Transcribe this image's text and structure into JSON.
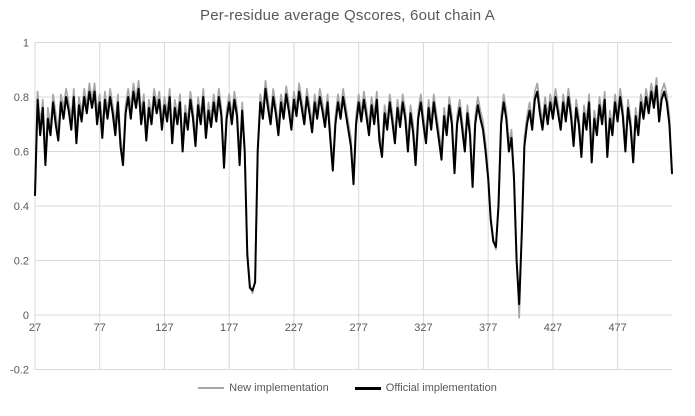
{
  "title": "Per-residue average Qscores, 6out chain A",
  "colors": {
    "title_text": "#595959",
    "axis_text": "#595959",
    "gridline": "#d9d9d9",
    "background": "#ffffff",
    "series_new": "#a6a6a6",
    "series_official": "#000000"
  },
  "legend": {
    "items": [
      {
        "label": "New implementation",
        "color": "#a6a6a6"
      },
      {
        "label": "Official implementation",
        "color": "#000000"
      }
    ]
  },
  "chart_data": {
    "type": "line",
    "title": "Per-residue average Qscores, 6out chain A",
    "xlabel": "",
    "ylabel": "",
    "xlim": [
      27,
      519
    ],
    "ylim": [
      -0.2,
      1
    ],
    "grid": true,
    "legend_position": "bottom",
    "x_ticks": [
      27,
      77,
      127,
      177,
      227,
      277,
      327,
      377,
      427,
      477
    ],
    "y_ticks": [
      "1",
      "0.8",
      "0.6",
      "0.4",
      "0.2",
      "0",
      "-0.2"
    ],
    "y_tick_values": [
      1,
      0.8,
      0.6,
      0.4,
      0.2,
      0,
      -0.2
    ],
    "x_start": 27,
    "x_step": 2,
    "series": [
      {
        "name": "New implementation",
        "color": "#a6a6a6",
        "width": 1.7,
        "values": [
          0.47,
          0.82,
          0.7,
          0.79,
          0.58,
          0.76,
          0.69,
          0.81,
          0.74,
          0.67,
          0.81,
          0.76,
          0.83,
          0.78,
          0.72,
          0.83,
          0.66,
          0.8,
          0.74,
          0.83,
          0.77,
          0.85,
          0.79,
          0.85,
          0.74,
          0.81,
          0.68,
          0.82,
          0.75,
          0.83,
          0.77,
          0.7,
          0.81,
          0.65,
          0.58,
          0.77,
          0.83,
          0.76,
          0.85,
          0.79,
          0.86,
          0.74,
          0.81,
          0.67,
          0.79,
          0.73,
          0.83,
          0.77,
          0.82,
          0.71,
          0.8,
          0.74,
          0.83,
          0.66,
          0.79,
          0.73,
          0.81,
          0.63,
          0.77,
          0.71,
          0.82,
          0.75,
          0.65,
          0.8,
          0.73,
          0.83,
          0.68,
          0.78,
          0.72,
          0.81,
          0.74,
          0.83,
          0.76,
          0.57,
          0.75,
          0.81,
          0.73,
          0.82,
          0.76,
          0.58,
          0.78,
          0.62,
          0.24,
          0.11,
          0.08,
          0.13,
          0.62,
          0.81,
          0.75,
          0.86,
          0.79,
          0.73,
          0.83,
          0.77,
          0.69,
          0.81,
          0.75,
          0.84,
          0.78,
          0.71,
          0.82,
          0.76,
          0.85,
          0.79,
          0.73,
          0.83,
          0.77,
          0.7,
          0.81,
          0.75,
          0.83,
          0.78,
          0.72,
          0.81,
          0.68,
          0.55,
          0.73,
          0.81,
          0.75,
          0.83,
          0.77,
          0.71,
          0.65,
          0.5,
          0.73,
          0.81,
          0.74,
          0.82,
          0.76,
          0.69,
          0.8,
          0.73,
          0.82,
          0.67,
          0.61,
          0.77,
          0.71,
          0.81,
          0.74,
          0.66,
          0.79,
          0.72,
          0.81,
          0.75,
          0.63,
          0.77,
          0.7,
          0.58,
          0.75,
          0.81,
          0.73,
          0.66,
          0.79,
          0.71,
          0.81,
          0.74,
          0.67,
          0.6,
          0.76,
          0.69,
          0.8,
          0.73,
          0.55,
          0.73,
          0.79,
          0.71,
          0.63,
          0.77,
          0.69,
          0.5,
          0.73,
          0.8,
          0.75,
          0.71,
          0.63,
          0.52,
          0.36,
          0.28,
          0.24,
          0.42,
          0.73,
          0.81,
          0.75,
          0.63,
          0.68,
          0.52,
          0.21,
          -0.01,
          0.32,
          0.65,
          0.73,
          0.78,
          0.71,
          0.82,
          0.85,
          0.77,
          0.71,
          0.8,
          0.73,
          0.81,
          0.75,
          0.83,
          0.77,
          0.71,
          0.81,
          0.74,
          0.83,
          0.76,
          0.65,
          0.79,
          0.73,
          0.61,
          0.77,
          0.71,
          0.81,
          0.59,
          0.75,
          0.69,
          0.8,
          0.73,
          0.82,
          0.61,
          0.75,
          0.69,
          0.81,
          0.74,
          0.83,
          0.76,
          0.63,
          0.79,
          0.72,
          0.59,
          0.76,
          0.69,
          0.81,
          0.75,
          0.83,
          0.77,
          0.85,
          0.79,
          0.87,
          0.74,
          0.82,
          0.85,
          0.81,
          0.73,
          0.53
        ]
      },
      {
        "name": "Official implementation",
        "color": "#000000",
        "width": 2,
        "values": [
          0.44,
          0.79,
          0.66,
          0.76,
          0.55,
          0.72,
          0.66,
          0.78,
          0.7,
          0.64,
          0.78,
          0.72,
          0.8,
          0.75,
          0.68,
          0.8,
          0.63,
          0.77,
          0.71,
          0.8,
          0.74,
          0.82,
          0.76,
          0.82,
          0.7,
          0.78,
          0.65,
          0.79,
          0.72,
          0.8,
          0.74,
          0.66,
          0.78,
          0.62,
          0.55,
          0.74,
          0.8,
          0.72,
          0.82,
          0.76,
          0.83,
          0.7,
          0.78,
          0.64,
          0.76,
          0.7,
          0.8,
          0.74,
          0.79,
          0.68,
          0.77,
          0.71,
          0.8,
          0.63,
          0.76,
          0.7,
          0.78,
          0.6,
          0.74,
          0.68,
          0.79,
          0.72,
          0.62,
          0.77,
          0.7,
          0.8,
          0.65,
          0.75,
          0.69,
          0.78,
          0.71,
          0.8,
          0.73,
          0.54,
          0.72,
          0.78,
          0.7,
          0.79,
          0.73,
          0.55,
          0.75,
          0.6,
          0.22,
          0.1,
          0.09,
          0.12,
          0.6,
          0.78,
          0.72,
          0.83,
          0.76,
          0.7,
          0.8,
          0.74,
          0.66,
          0.78,
          0.72,
          0.81,
          0.75,
          0.68,
          0.79,
          0.73,
          0.82,
          0.76,
          0.7,
          0.8,
          0.74,
          0.67,
          0.78,
          0.72,
          0.8,
          0.75,
          0.69,
          0.78,
          0.65,
          0.53,
          0.7,
          0.78,
          0.72,
          0.8,
          0.74,
          0.68,
          0.62,
          0.48,
          0.7,
          0.78,
          0.71,
          0.79,
          0.73,
          0.66,
          0.77,
          0.7,
          0.79,
          0.64,
          0.58,
          0.74,
          0.68,
          0.78,
          0.71,
          0.63,
          0.76,
          0.69,
          0.78,
          0.72,
          0.6,
          0.74,
          0.67,
          0.55,
          0.72,
          0.78,
          0.7,
          0.63,
          0.76,
          0.68,
          0.78,
          0.71,
          0.64,
          0.57,
          0.73,
          0.66,
          0.77,
          0.7,
          0.52,
          0.7,
          0.76,
          0.68,
          0.6,
          0.74,
          0.66,
          0.47,
          0.7,
          0.77,
          0.72,
          0.68,
          0.6,
          0.5,
          0.35,
          0.27,
          0.25,
          0.4,
          0.7,
          0.78,
          0.72,
          0.6,
          0.65,
          0.5,
          0.2,
          0.04,
          0.3,
          0.62,
          0.7,
          0.75,
          0.68,
          0.79,
          0.82,
          0.74,
          0.68,
          0.77,
          0.7,
          0.78,
          0.72,
          0.8,
          0.74,
          0.68,
          0.78,
          0.71,
          0.8,
          0.73,
          0.62,
          0.76,
          0.7,
          0.58,
          0.74,
          0.68,
          0.78,
          0.56,
          0.72,
          0.66,
          0.77,
          0.7,
          0.79,
          0.58,
          0.72,
          0.66,
          0.78,
          0.71,
          0.8,
          0.73,
          0.6,
          0.76,
          0.69,
          0.56,
          0.73,
          0.66,
          0.78,
          0.72,
          0.8,
          0.74,
          0.82,
          0.76,
          0.84,
          0.71,
          0.79,
          0.82,
          0.78,
          0.7,
          0.52
        ]
      }
    ]
  }
}
